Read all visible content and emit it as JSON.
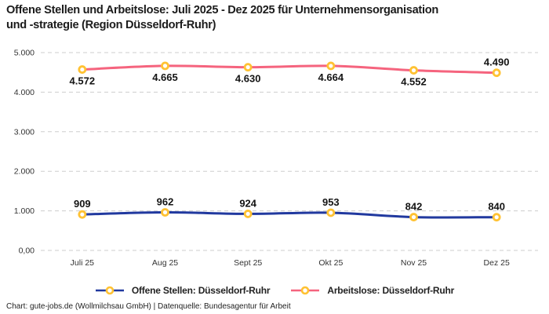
{
  "header": {
    "title": "Offene Stellen und Arbeitslose: Juli 2025 - Dez 2025 für Unternehmensorganisation\nund -strategie (Region Düsseldorf-Ruhr)"
  },
  "chart_data": {
    "type": "line",
    "categories": [
      "Juli 25",
      "Aug 25",
      "Sept 25",
      "Okt 25",
      "Nov 25",
      "Dez 25"
    ],
    "series": [
      {
        "name": "Offene Stellen: Düsseldorf-Ruhr",
        "color": "#21399F",
        "values": [
          909,
          962,
          924,
          953,
          842,
          840
        ],
        "value_labels": [
          "909",
          "962",
          "924",
          "953",
          "842",
          "840"
        ],
        "label_placement": [
          "above",
          "above",
          "above",
          "above",
          "above",
          "above"
        ]
      },
      {
        "name": "Arbeitslose: Düsseldorf-Ruhr",
        "color": "#F5647E",
        "values": [
          4572,
          4665,
          4630,
          4664,
          4552,
          4490
        ],
        "value_labels": [
          "4.572",
          "4.665",
          "4.630",
          "4.664",
          "4.552",
          "4.490"
        ],
        "label_placement": [
          "below",
          "below",
          "below",
          "below",
          "below",
          "above"
        ]
      }
    ],
    "y_ticks": [
      {
        "value": 0,
        "label": "0,00"
      },
      {
        "value": 1000,
        "label": "1.000"
      },
      {
        "value": 2000,
        "label": "2.000"
      },
      {
        "value": 3000,
        "label": "3.000"
      },
      {
        "value": 4000,
        "label": "4.000"
      },
      {
        "value": 5000,
        "label": "5.000"
      }
    ],
    "ylim": [
      0,
      5000
    ],
    "grid": "dashed",
    "grid_color": "#cdcdcd",
    "tick_color": "#333333",
    "data_label_color": "#141414",
    "legend_position": "bottom",
    "marker": {
      "ring_color": "#FFC233",
      "fill_color": "#FFFFFF"
    }
  },
  "footer": {
    "credit": "Chart: gute-jobs.de (Wollmilchsau GmbH) | Datenquelle: Bundesagentur für Arbeit"
  }
}
